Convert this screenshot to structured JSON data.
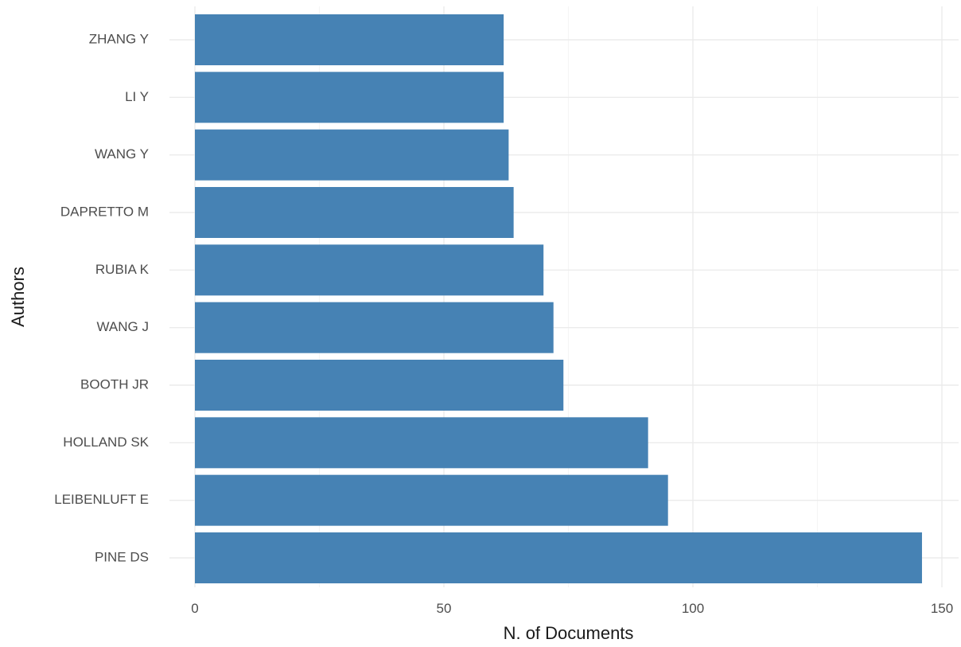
{
  "chart_data": {
    "type": "bar",
    "orientation": "horizontal",
    "categories": [
      "ZHANG Y",
      "LI Y",
      "WANG Y",
      "DAPRETTO M",
      "RUBIA K",
      "WANG J",
      "BOOTH JR",
      "HOLLAND SK",
      "LEIBENLUFT E",
      "PINE DS"
    ],
    "values": [
      62,
      62,
      63,
      64,
      70,
      72,
      74,
      91,
      95,
      146
    ],
    "xlabel": "N. of Documents",
    "ylabel": "Authors",
    "xlim": [
      0,
      150
    ],
    "xticks": [
      0,
      50,
      100,
      150
    ],
    "xtick_labels": [
      "0",
      "50",
      "100",
      "150"
    ],
    "grid": true,
    "bar_color": "#4682B4",
    "grid_color": "#ebebeb"
  }
}
